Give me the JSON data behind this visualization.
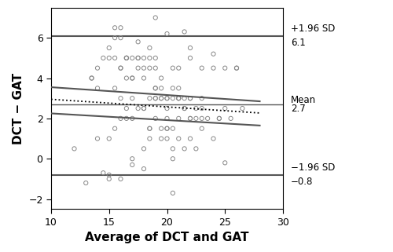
{
  "title": "",
  "xlabel": "Average of DCT and GAT",
  "ylabel": "DCT − GAT",
  "xlim": [
    10,
    28
  ],
  "ylim": [
    -2.5,
    7.5
  ],
  "xticks": [
    10,
    15,
    20,
    25,
    30
  ],
  "yticks": [
    -2,
    0,
    2,
    4,
    6
  ],
  "mean_line": 2.7,
  "upper_line": 6.1,
  "lower_line": -0.8,
  "scatter_x": [
    12.0,
    13.5,
    14.0,
    14.5,
    14.0,
    15.0,
    15.5,
    15.0,
    15.5,
    16.0,
    16.5,
    16.0,
    16.5,
    16.0,
    16.5,
    17.0,
    17.0,
    17.5,
    17.5,
    17.0,
    17.5,
    18.0,
    18.0,
    18.5,
    18.0,
    18.5,
    18.0,
    18.5,
    19.0,
    19.0,
    19.5,
    19.0,
    19.5,
    19.0,
    19.5,
    20.0,
    20.0,
    20.5,
    20.0,
    20.5,
    20.0,
    20.5,
    21.0,
    21.0,
    21.5,
    21.0,
    21.5,
    22.0,
    22.0,
    22.5,
    22.0,
    22.5,
    23.0,
    23.0,
    23.5,
    23.0,
    24.0,
    24.5,
    25.0,
    25.5,
    26.0,
    26.5,
    14.0,
    15.0,
    16.0,
    15.5,
    16.5,
    17.0,
    17.5,
    18.0,
    18.5,
    19.0,
    19.5,
    20.0,
    20.5,
    21.0,
    21.5,
    22.0,
    15.0,
    16.0,
    17.0,
    18.0,
    19.0,
    20.0,
    21.0,
    22.0,
    23.0,
    24.0,
    25.0,
    26.0,
    13.0,
    14.5,
    16.5,
    18.5,
    20.5,
    22.5,
    24.5,
    15.5,
    17.5,
    19.5,
    21.5,
    16.0,
    18.0,
    20.0,
    22.0,
    24.0,
    19.0,
    21.0,
    23.0,
    13.5,
    15.5,
    17.0,
    20.0,
    22.0,
    25.0,
    16.5,
    18.5,
    20.5,
    15.0,
    19.0,
    21.5,
    17.0,
    19.5,
    21.0,
    16.0,
    18.5,
    20.5
  ],
  "scatter_y": [
    0.5,
    4.0,
    4.5,
    5.0,
    1.0,
    5.0,
    5.0,
    1.0,
    3.5,
    4.5,
    5.0,
    4.5,
    5.0,
    3.0,
    4.0,
    5.0,
    3.0,
    5.0,
    5.0,
    4.0,
    4.5,
    5.0,
    4.5,
    5.5,
    4.0,
    4.5,
    2.5,
    3.0,
    3.0,
    3.5,
    4.0,
    5.0,
    3.0,
    4.5,
    3.0,
    3.0,
    3.0,
    4.5,
    2.0,
    3.0,
    2.5,
    3.5,
    4.5,
    3.0,
    2.5,
    3.0,
    3.0,
    3.0,
    5.0,
    2.5,
    3.0,
    2.0,
    2.5,
    4.5,
    2.0,
    3.0,
    4.5,
    2.0,
    4.5,
    2.0,
    4.5,
    2.5,
    3.5,
    5.5,
    6.0,
    6.0,
    5.0,
    4.0,
    2.5,
    2.5,
    5.0,
    3.5,
    1.5,
    1.5,
    1.5,
    1.0,
    2.5,
    2.0,
    -1.0,
    -1.0,
    0.0,
    -0.5,
    3.0,
    1.5,
    3.0,
    2.0,
    2.0,
    1.0,
    2.5,
    4.5,
    -1.2,
    -0.7,
    2.0,
    1.5,
    -1.7,
    0.5,
    2.0,
    6.5,
    5.8,
    3.5,
    6.3,
    6.5,
    0.5,
    6.2,
    5.5,
    5.2,
    7.0,
    3.5,
    1.5,
    4.0,
    1.5,
    2.0,
    1.0,
    1.0,
    -0.2,
    2.5,
    1.0,
    0.0,
    -0.8,
    2.0,
    0.5,
    -0.3,
    1.0,
    2.0,
    2.0,
    1.5,
    0.5
  ],
  "reg_x0": 10,
  "reg_x1": 28,
  "reg_y0": 2.95,
  "reg_y1": 2.27,
  "ci_upper_x0": 10,
  "ci_upper_x1": 28,
  "ci_upper_y0": 3.55,
  "ci_upper_y1": 2.85,
  "ci_lower_x0": 10,
  "ci_lower_x1": 28,
  "ci_lower_y0": 2.25,
  "ci_lower_y1": 1.65,
  "line_color": "#555555",
  "scatter_color": "#888888",
  "hline_color": "#555555",
  "annotation_fontsize": 8.5,
  "axis_label_fontsize": 11,
  "tick_fontsize": 9
}
